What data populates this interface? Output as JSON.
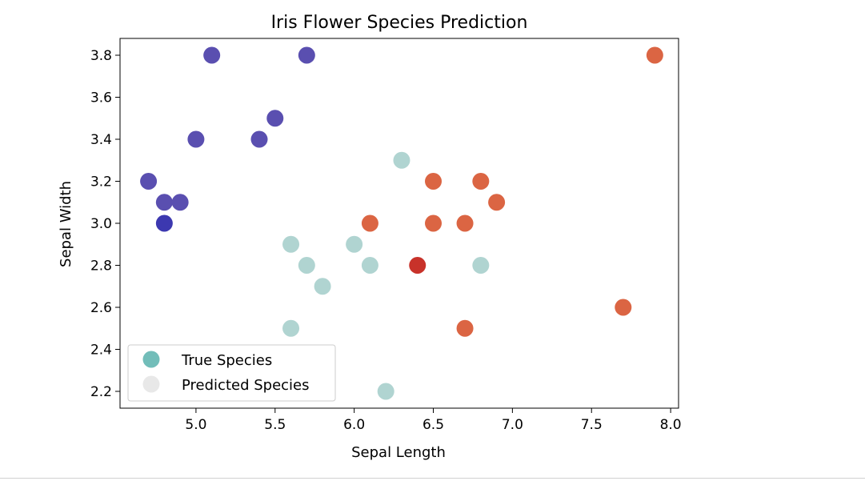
{
  "chart_data": {
    "type": "scatter",
    "title": "Iris Flower Species Prediction",
    "xlabel": "Sepal Length",
    "ylabel": "Sepal Width",
    "xlim": [
      4.52,
      8.05
    ],
    "ylim": [
      2.12,
      3.88
    ],
    "xticks": [
      "5.0",
      "5.5",
      "6.0",
      "6.5",
      "7.0",
      "7.5",
      "8.0"
    ],
    "yticks": [
      "2.2",
      "2.4",
      "2.6",
      "2.8",
      "3.0",
      "3.2",
      "3.4",
      "3.6",
      "3.8"
    ],
    "grid": false,
    "legend_position": "lower-left",
    "legend": [
      {
        "label": "True Species",
        "color": "#72bdb9"
      },
      {
        "label": "Predicted Species",
        "color": "#e8e8e8"
      }
    ],
    "class_colors": {
      "setosa": "#5a4fb0",
      "versicolor": "#b0d4d1",
      "virginica": "#db6543",
      "setosa_overlap": "#3c38b0",
      "virginica_overlap": "#c8322a"
    },
    "points": [
      {
        "x": 5.1,
        "y": 3.8,
        "class": "setosa"
      },
      {
        "x": 5.7,
        "y": 3.8,
        "class": "setosa"
      },
      {
        "x": 5.5,
        "y": 3.5,
        "class": "setosa"
      },
      {
        "x": 5.0,
        "y": 3.4,
        "class": "setosa"
      },
      {
        "x": 5.4,
        "y": 3.4,
        "class": "setosa"
      },
      {
        "x": 4.7,
        "y": 3.2,
        "class": "setosa"
      },
      {
        "x": 4.8,
        "y": 3.1,
        "class": "setosa"
      },
      {
        "x": 4.9,
        "y": 3.1,
        "class": "setosa"
      },
      {
        "x": 4.8,
        "y": 3.0,
        "class": "setosa_overlap"
      },
      {
        "x": 6.3,
        "y": 3.3,
        "class": "versicolor"
      },
      {
        "x": 5.6,
        "y": 2.9,
        "class": "versicolor"
      },
      {
        "x": 6.0,
        "y": 2.9,
        "class": "versicolor"
      },
      {
        "x": 5.7,
        "y": 2.8,
        "class": "versicolor"
      },
      {
        "x": 6.1,
        "y": 2.8,
        "class": "versicolor"
      },
      {
        "x": 6.8,
        "y": 2.8,
        "class": "versicolor"
      },
      {
        "x": 5.8,
        "y": 2.7,
        "class": "versicolor"
      },
      {
        "x": 5.6,
        "y": 2.5,
        "class": "versicolor"
      },
      {
        "x": 6.2,
        "y": 2.2,
        "class": "versicolor"
      },
      {
        "x": 7.9,
        "y": 3.8,
        "class": "virginica"
      },
      {
        "x": 6.5,
        "y": 3.2,
        "class": "virginica"
      },
      {
        "x": 6.8,
        "y": 3.2,
        "class": "virginica"
      },
      {
        "x": 6.9,
        "y": 3.1,
        "class": "virginica"
      },
      {
        "x": 6.1,
        "y": 3.0,
        "class": "virginica"
      },
      {
        "x": 6.5,
        "y": 3.0,
        "class": "virginica"
      },
      {
        "x": 6.7,
        "y": 3.0,
        "class": "virginica"
      },
      {
        "x": 6.4,
        "y": 2.8,
        "class": "virginica_overlap"
      },
      {
        "x": 7.7,
        "y": 2.6,
        "class": "virginica"
      },
      {
        "x": 6.7,
        "y": 2.5,
        "class": "virginica"
      }
    ]
  }
}
